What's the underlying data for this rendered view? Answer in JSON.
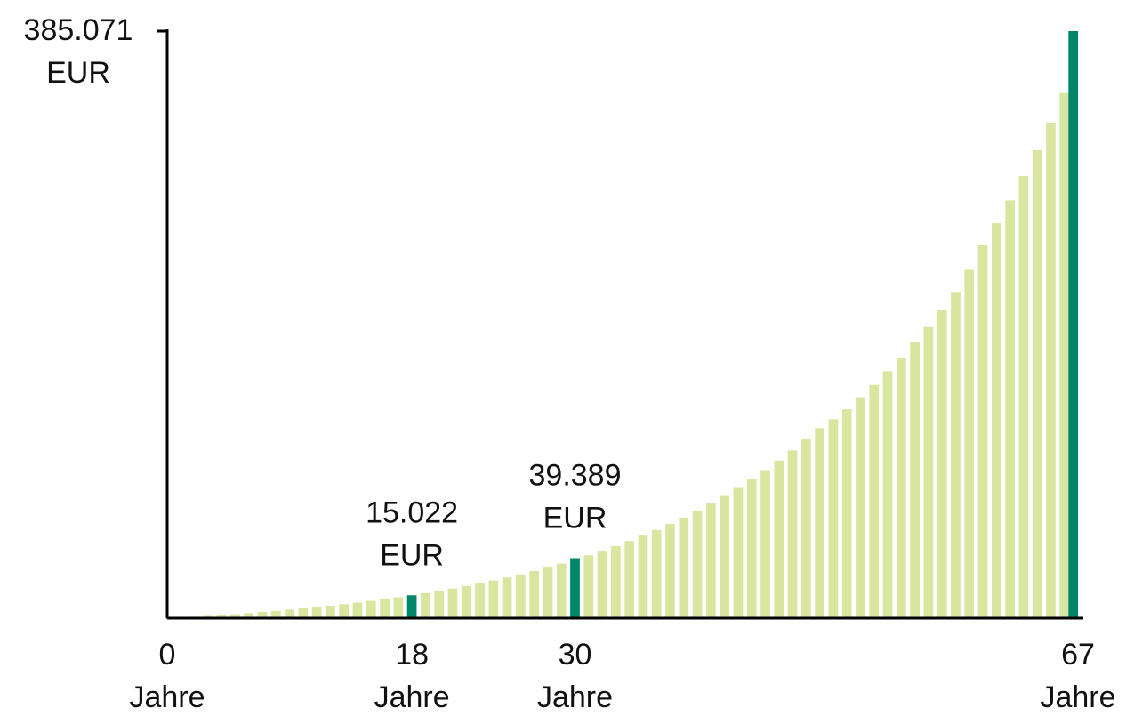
{
  "chart_data": {
    "type": "bar",
    "x": [
      0,
      1,
      2,
      3,
      4,
      5,
      6,
      7,
      8,
      9,
      10,
      11,
      12,
      13,
      14,
      15,
      16,
      17,
      18,
      19,
      20,
      21,
      22,
      23,
      24,
      25,
      26,
      27,
      28,
      29,
      30,
      31,
      32,
      33,
      34,
      35,
      36,
      37,
      38,
      39,
      40,
      41,
      42,
      43,
      44,
      45,
      46,
      47,
      48,
      49,
      50,
      51,
      52,
      53,
      54,
      55,
      56,
      57,
      58,
      59,
      60,
      61,
      62,
      63,
      64,
      65,
      66,
      67
    ],
    "values": [
      0,
      500,
      1000,
      1500,
      2100,
      2700,
      3400,
      4100,
      4800,
      5600,
      6400,
      7300,
      8200,
      9200,
      10200,
      11300,
      12500,
      13700,
      15022,
      16400,
      17900,
      19400,
      21100,
      22800,
      24700,
      26700,
      28700,
      31000,
      33300,
      35800,
      39389,
      41200,
      44200,
      47300,
      50600,
      54200,
      57900,
      61900,
      66000,
      70500,
      75200,
      80200,
      85500,
      91100,
      97100,
      103400,
      110100,
      117200,
      124700,
      130500,
      137000,
      145000,
      153000,
      162000,
      171000,
      181000,
      191000,
      202000,
      214000,
      229000,
      245000,
      259000,
      274000,
      290000,
      307000,
      325000,
      345000,
      385071
    ],
    "value_labels": [
      null,
      null,
      null,
      null,
      null,
      null,
      null,
      null,
      null,
      null,
      null,
      null,
      null,
      null,
      null,
      null,
      null,
      null,
      "15.022\nEUR",
      null,
      null,
      null,
      null,
      null,
      null,
      null,
      null,
      null,
      null,
      null,
      "39.389\nEUR",
      null,
      null,
      null,
      null,
      null,
      null,
      null,
      null,
      null,
      null,
      null,
      null,
      null,
      null,
      null,
      null,
      null,
      null,
      null,
      null,
      null,
      null,
      null,
      null,
      null,
      null,
      null,
      null,
      null,
      null,
      null,
      null,
      null,
      null,
      null,
      null,
      null
    ],
    "color": "#d8e6a0",
    "highlight": [
      18,
      30,
      67
    ],
    "highlight_color": "#00876a",
    "xlim": [
      0,
      67
    ],
    "xticks": [
      {
        "value": 0,
        "label": "0\nJahre"
      },
      {
        "value": 18,
        "label": "18\nJahre"
      },
      {
        "value": 30,
        "label": "30\nJahre"
      },
      {
        "value": 67,
        "label": "67\nJahre"
      }
    ],
    "ylim": [
      0,
      385071
    ],
    "yticks": [
      {
        "value": 385071,
        "label": "385.071\nEUR"
      }
    ]
  }
}
